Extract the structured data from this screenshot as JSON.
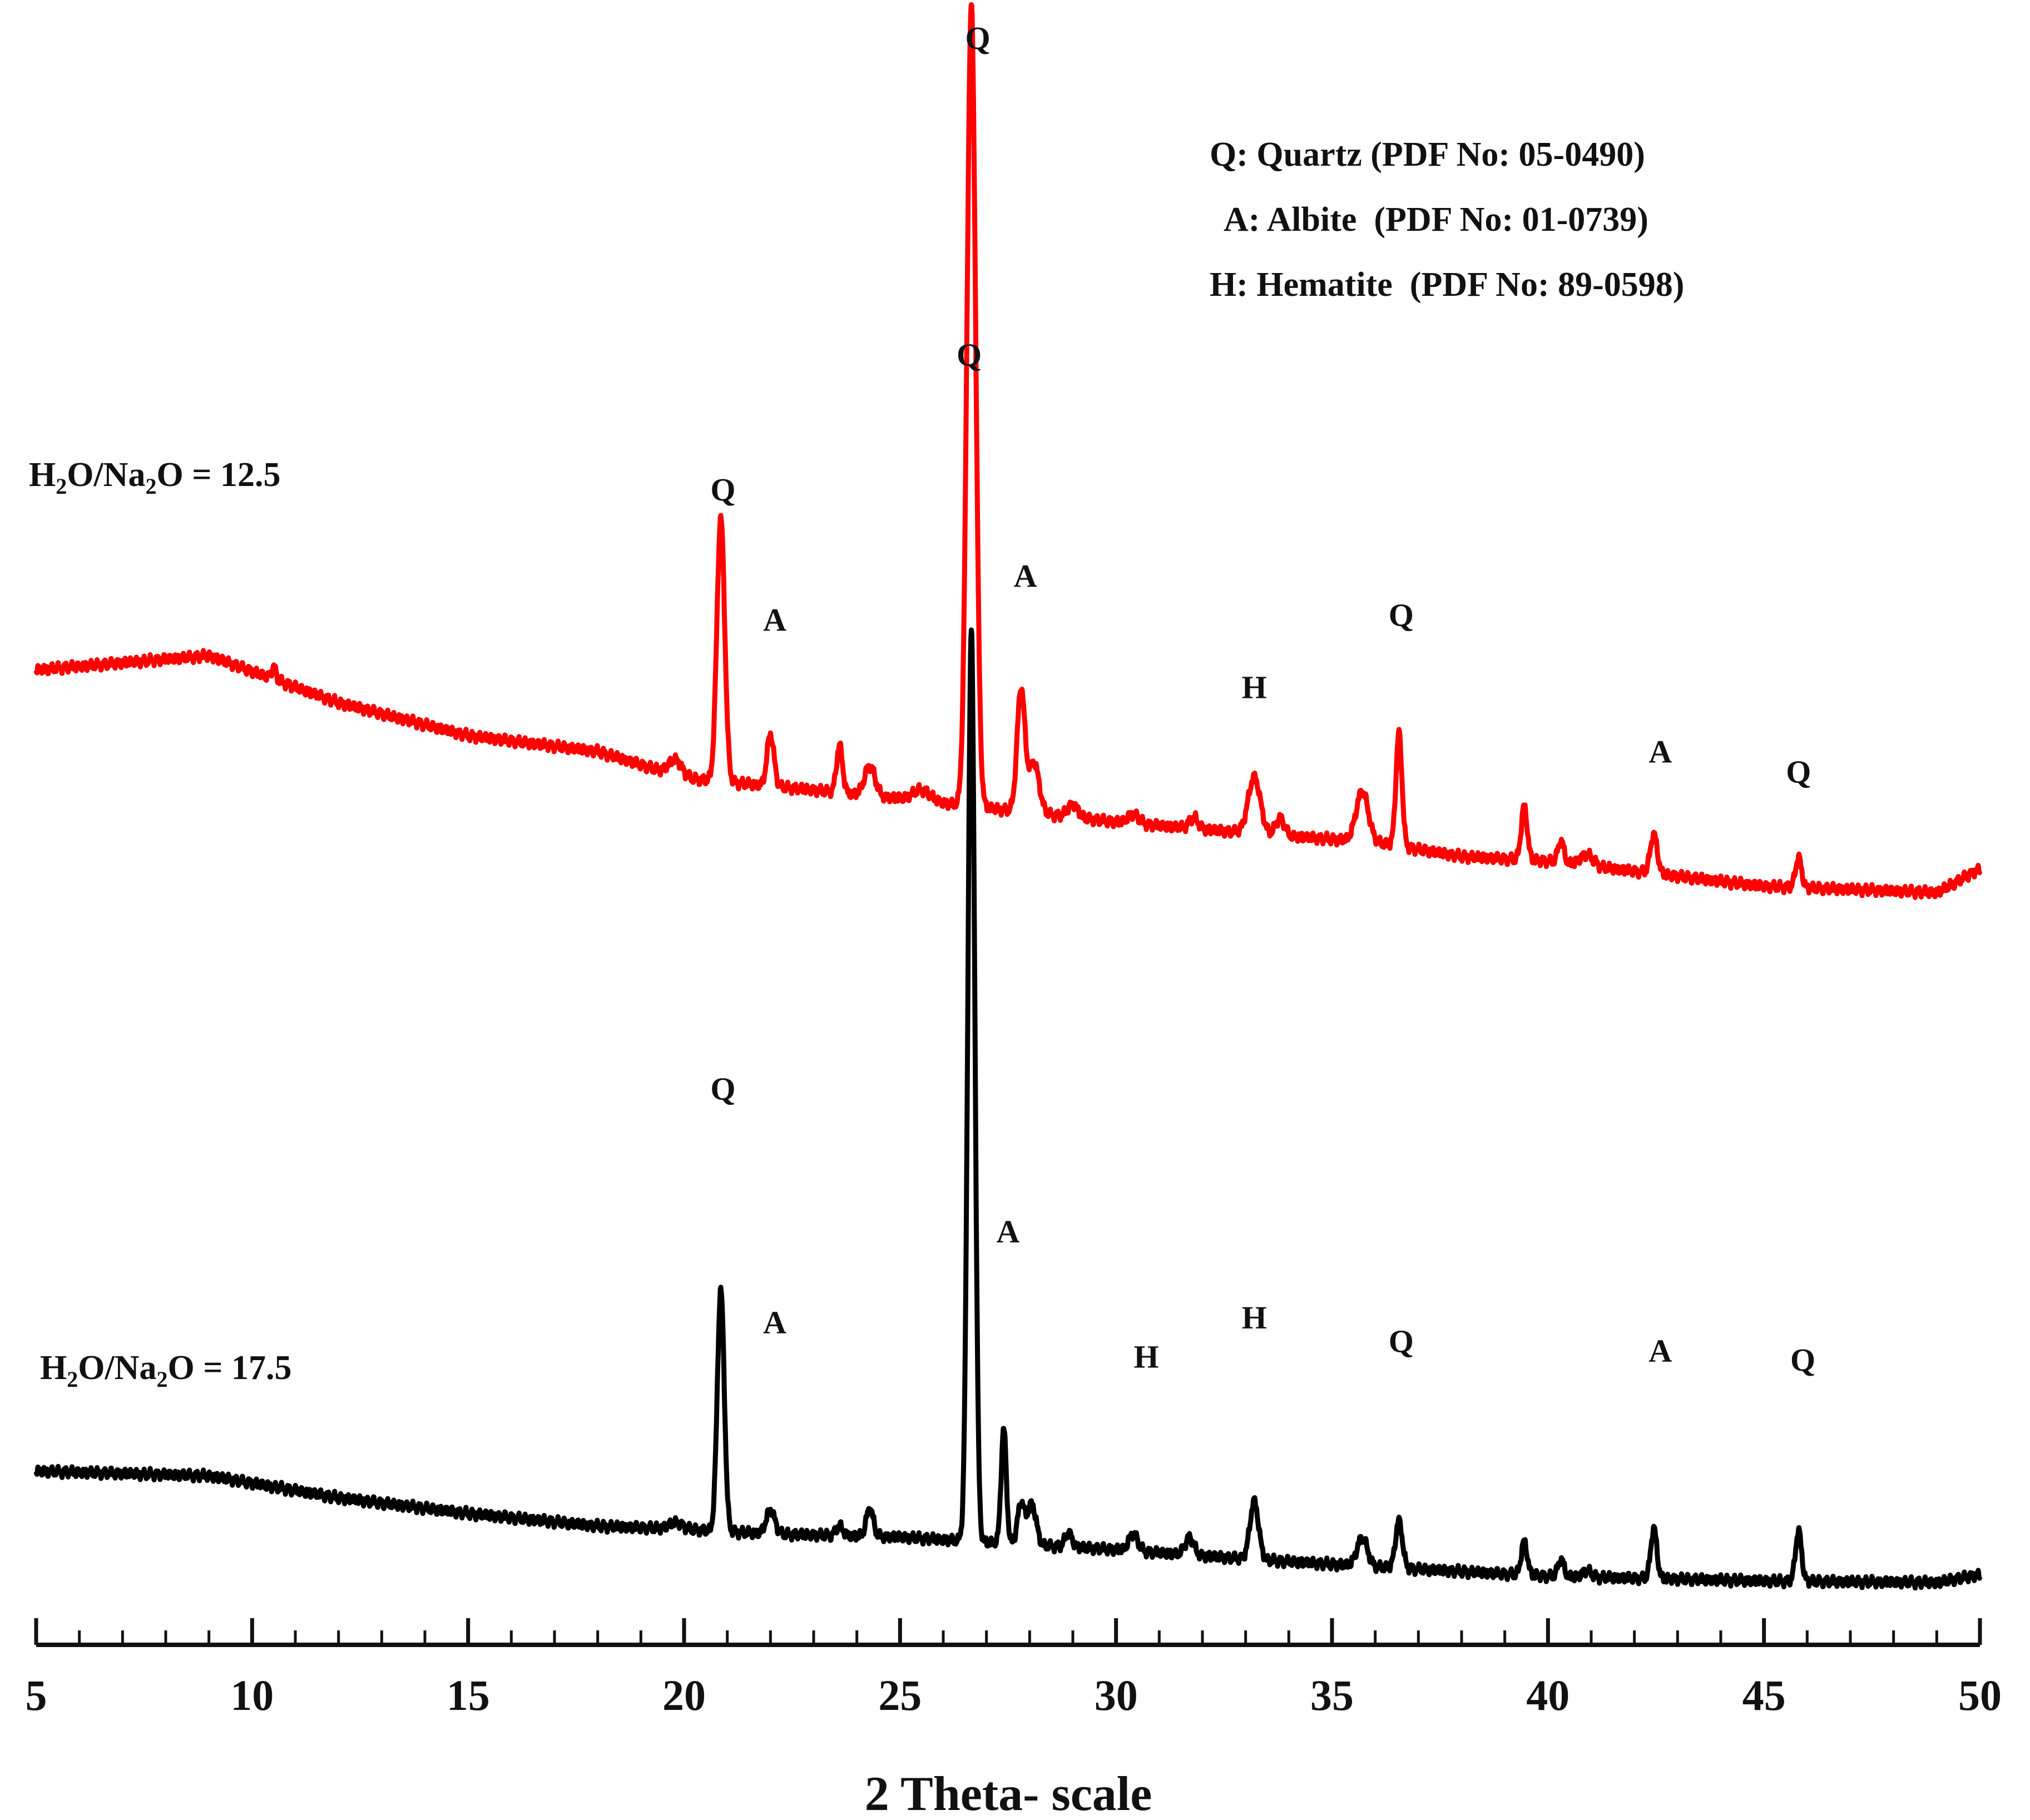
{
  "chart_data": {
    "type": "line",
    "title": "",
    "xlabel": "2 Theta- scale",
    "ylabel": "",
    "xlim": [
      5,
      50
    ],
    "ylim": [
      0,
      100
    ],
    "grid": false,
    "x_ticks": [
      5,
      10,
      15,
      20,
      25,
      30,
      35,
      40,
      45,
      50
    ],
    "legend": {
      "placement": "top-right",
      "entries": [
        "Q: Quartz (PDF No: 05-0490)",
        "A: Albite  (PDF No: 01-0739)",
        "H: Hematite  (PDF No: 89-0598)"
      ]
    },
    "series": [
      {
        "name": "H2O/Na2O = 12.5",
        "label_parts": {
          "a": "H",
          "sub1": "2",
          "b": "O/Na",
          "sub2": "2",
          "c": "O = 12.5"
        },
        "color": "#ff0000",
        "baseline": [
          [
            5,
            14.7
          ],
          [
            9,
            15.6
          ],
          [
            12,
            12.6
          ],
          [
            15,
            10.5
          ],
          [
            18,
            9.5
          ],
          [
            20,
            7.8
          ],
          [
            22,
            7.3
          ],
          [
            25,
            6.5
          ],
          [
            28,
            5.6
          ],
          [
            30,
            5.0
          ],
          [
            33,
            4.3
          ],
          [
            36,
            3.7
          ],
          [
            38,
            2.8
          ],
          [
            40,
            2.5
          ],
          [
            45,
            0.9
          ],
          [
            49,
            0.5
          ],
          [
            50,
            2.0
          ]
        ],
        "peaks": [
          [
            10.5,
            0.8,
            0.05
          ],
          [
            19.8,
            1.0,
            0.15
          ],
          [
            20.85,
            16.8,
            0.09
          ],
          [
            22.0,
            3.3,
            0.08
          ],
          [
            23.6,
            3.0,
            0.07
          ],
          [
            24.3,
            1.9,
            0.12
          ],
          [
            25.5,
            0.7,
            0.2
          ],
          [
            26.65,
            51.0,
            0.1
          ],
          [
            27.8,
            7.8,
            0.09
          ],
          [
            28.1,
            3.2,
            0.12
          ],
          [
            29.0,
            0.8,
            0.12
          ],
          [
            30.4,
            0.6,
            0.12
          ],
          [
            31.8,
            0.7,
            0.1
          ],
          [
            33.2,
            3.6,
            0.14
          ],
          [
            33.8,
            1.1,
            0.1
          ],
          [
            35.7,
            3.2,
            0.14
          ],
          [
            36.55,
            7.2,
            0.07
          ],
          [
            39.45,
            3.4,
            0.07
          ],
          [
            40.3,
            1.4,
            0.07
          ],
          [
            40.9,
            0.7,
            0.15
          ],
          [
            42.45,
            2.5,
            0.08
          ],
          [
            45.8,
            1.9,
            0.07
          ]
        ]
      },
      {
        "name": "H2O/Na2O = 17.5",
        "label_parts": {
          "a": "H",
          "sub1": "2",
          "b": "O/Na",
          "sub2": "2",
          "c": "O = 17.5"
        },
        "color": "#000000",
        "baseline": [
          [
            5,
            7.6
          ],
          [
            9,
            7.3
          ],
          [
            12,
            5.9
          ],
          [
            15,
            4.9
          ],
          [
            18,
            4.1
          ],
          [
            20,
            3.9
          ],
          [
            22,
            3.6
          ],
          [
            25,
            3.4
          ],
          [
            28,
            2.9
          ],
          [
            30,
            2.6
          ],
          [
            33,
            2.0
          ],
          [
            36,
            1.5
          ],
          [
            38,
            1.2
          ],
          [
            40,
            0.9
          ],
          [
            45,
            0.6
          ],
          [
            49,
            0.5
          ],
          [
            50,
            1.0
          ]
        ],
        "peaks": [
          [
            19.8,
            0.4,
            0.15
          ],
          [
            20.85,
            15.4,
            0.08
          ],
          [
            22.0,
            1.5,
            0.1
          ],
          [
            23.6,
            0.6,
            0.08
          ],
          [
            24.3,
            1.8,
            0.08
          ],
          [
            26.65,
            58.0,
            0.08
          ],
          [
            27.4,
            7.3,
            0.06
          ],
          [
            27.8,
            2.6,
            0.08
          ],
          [
            28.05,
            2.6,
            0.1
          ],
          [
            28.9,
            0.9,
            0.08
          ],
          [
            30.4,
            1.1,
            0.1
          ],
          [
            31.7,
            1.1,
            0.1
          ],
          [
            33.2,
            3.7,
            0.1
          ],
          [
            35.7,
            1.8,
            0.12
          ],
          [
            36.55,
            3.0,
            0.08
          ],
          [
            39.45,
            2.1,
            0.07
          ],
          [
            40.3,
            1.1,
            0.07
          ],
          [
            40.9,
            0.4,
            0.1
          ],
          [
            42.45,
            3.2,
            0.07
          ],
          [
            45.8,
            3.2,
            0.07
          ]
        ]
      }
    ],
    "annotations": [
      {
        "series": 0,
        "text": "Q",
        "x": 20.9,
        "y": 69.5
      },
      {
        "series": 0,
        "text": "A",
        "x": 22.1,
        "y": 61.2
      },
      {
        "series": 0,
        "text": "Q",
        "x": 26.8,
        "y": 98.3
      },
      {
        "series": 0,
        "text": "A",
        "x": 27.9,
        "y": 64.0
      },
      {
        "series": 0,
        "text": "H",
        "x": 33.2,
        "y": 56.9
      },
      {
        "series": 0,
        "text": "Q",
        "x": 36.6,
        "y": 61.5
      },
      {
        "series": 0,
        "text": "A",
        "x": 42.6,
        "y": 52.8
      },
      {
        "series": 0,
        "text": "Q",
        "x": 45.8,
        "y": 51.5
      },
      {
        "series": 1,
        "text": "Q",
        "x": 20.9,
        "y": 31.3
      },
      {
        "series": 1,
        "text": "A",
        "x": 22.1,
        "y": 16.4
      },
      {
        "series": 1,
        "text": "Q",
        "x": 26.6,
        "y": 78.1
      },
      {
        "series": 1,
        "text": "A",
        "x": 27.5,
        "y": 22.2
      },
      {
        "series": 1,
        "text": "H",
        "x": 30.7,
        "y": 14.2
      },
      {
        "series": 1,
        "text": "H",
        "x": 33.2,
        "y": 16.7
      },
      {
        "series": 1,
        "text": "Q",
        "x": 36.6,
        "y": 15.2
      },
      {
        "series": 1,
        "text": "A",
        "x": 42.6,
        "y": 14.6
      },
      {
        "series": 1,
        "text": "Q",
        "x": 45.9,
        "y": 14.0
      }
    ]
  }
}
